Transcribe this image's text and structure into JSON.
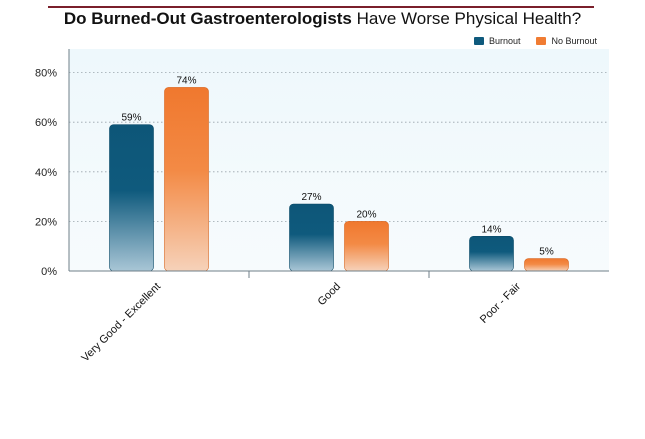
{
  "chart_data": {
    "type": "bar",
    "title_bold": "Do Burned-Out Gastroenterologists",
    "title_rest": " Have Worse Physical Health?",
    "categories": [
      "Very Good - Excellent",
      "Good",
      "Poor - Fair"
    ],
    "series": [
      {
        "name": "Burnout",
        "values": [
          59,
          27,
          14
        ],
        "labels": [
          "59%",
          "27%",
          "14%"
        ],
        "color": "#0f5a7d"
      },
      {
        "name": "No Burnout",
        "values": [
          74,
          20,
          5
        ],
        "labels": [
          "74%",
          "20%",
          "5%"
        ],
        "color": "#f07c33"
      }
    ],
    "yticks": [
      "0%",
      "20%",
      "40%",
      "60%",
      "80%"
    ],
    "ylim": [
      0,
      88
    ],
    "grid": true,
    "legend_position": "top-right"
  }
}
